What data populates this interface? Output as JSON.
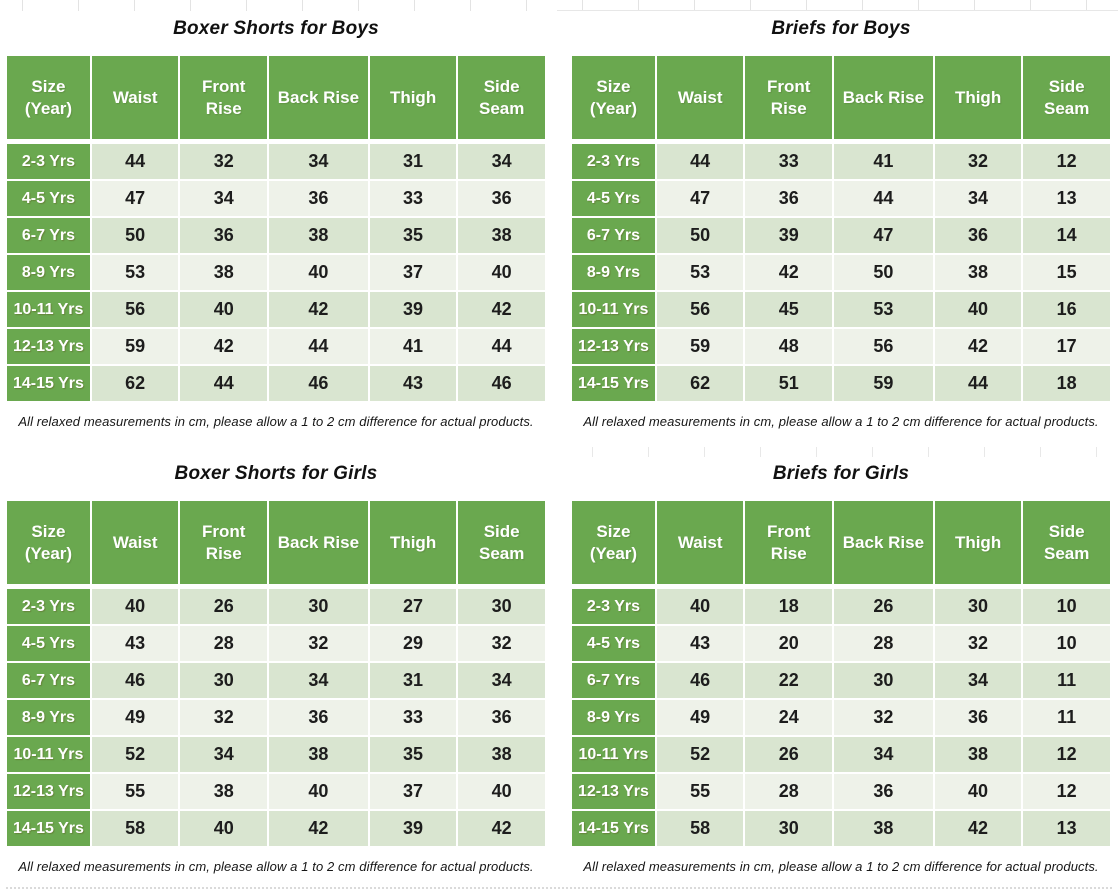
{
  "colors": {
    "header_green": "#6aa84f",
    "row_light_green": "#d9e5d0",
    "row_pale_green": "#eef2e9",
    "header_text": "#ffffff",
    "body_text": "#1d1d1d",
    "gridline_gray": "#e3e3e3"
  },
  "columns": [
    "Size (Year)",
    "Waist",
    "Front Rise",
    "Back Rise",
    "Thigh",
    "Side Seam"
  ],
  "footnote": "All relaxed measurements in cm, please allow a 1 to 2 cm difference for actual products.",
  "tables": [
    {
      "title": "Boxer Shorts for Boys",
      "rows": [
        [
          "2-3 Yrs",
          44,
          32,
          34,
          31,
          34
        ],
        [
          "4-5 Yrs",
          47,
          34,
          36,
          33,
          36
        ],
        [
          "6-7 Yrs",
          50,
          36,
          38,
          35,
          38
        ],
        [
          "8-9 Yrs",
          53,
          38,
          40,
          37,
          40
        ],
        [
          "10-11 Yrs",
          56,
          40,
          42,
          39,
          42
        ],
        [
          "12-13 Yrs",
          59,
          42,
          44,
          41,
          44
        ],
        [
          "14-15 Yrs",
          62,
          44,
          46,
          43,
          46
        ]
      ]
    },
    {
      "title": "Briefs for Boys",
      "rows": [
        [
          "2-3 Yrs",
          44,
          33,
          41,
          32,
          12
        ],
        [
          "4-5 Yrs",
          47,
          36,
          44,
          34,
          13
        ],
        [
          "6-7 Yrs",
          50,
          39,
          47,
          36,
          14
        ],
        [
          "8-9 Yrs",
          53,
          42,
          50,
          38,
          15
        ],
        [
          "10-11 Yrs",
          56,
          45,
          53,
          40,
          16
        ],
        [
          "12-13 Yrs",
          59,
          48,
          56,
          42,
          17
        ],
        [
          "14-15 Yrs",
          62,
          51,
          59,
          44,
          18
        ]
      ]
    },
    {
      "title": "Boxer Shorts for Girls",
      "rows": [
        [
          "2-3 Yrs",
          40,
          26,
          30,
          27,
          30
        ],
        [
          "4-5 Yrs",
          43,
          28,
          32,
          29,
          32
        ],
        [
          "6-7 Yrs",
          46,
          30,
          34,
          31,
          34
        ],
        [
          "8-9 Yrs",
          49,
          32,
          36,
          33,
          36
        ],
        [
          "10-11 Yrs",
          52,
          34,
          38,
          35,
          38
        ],
        [
          "12-13 Yrs",
          55,
          38,
          40,
          37,
          40
        ],
        [
          "14-15 Yrs",
          58,
          40,
          42,
          39,
          42
        ]
      ]
    },
    {
      "title": "Briefs for Girls",
      "rows": [
        [
          "2-3 Yrs",
          40,
          18,
          26,
          30,
          10
        ],
        [
          "4-5 Yrs",
          43,
          20,
          28,
          32,
          10
        ],
        [
          "6-7 Yrs",
          46,
          22,
          30,
          34,
          11
        ],
        [
          "8-9 Yrs",
          49,
          24,
          32,
          36,
          11
        ],
        [
          "10-11 Yrs",
          52,
          26,
          34,
          38,
          12
        ],
        [
          "12-13 Yrs",
          55,
          28,
          36,
          40,
          12
        ],
        [
          "14-15 Yrs",
          58,
          30,
          38,
          42,
          13
        ]
      ]
    }
  ]
}
